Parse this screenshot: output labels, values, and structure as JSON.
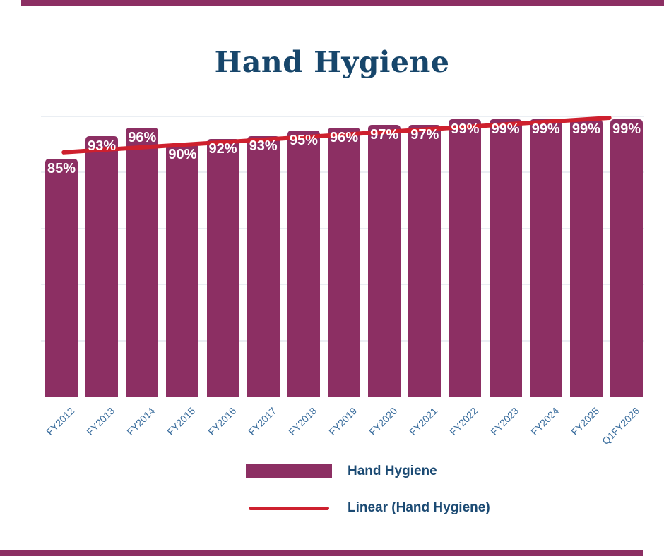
{
  "page": {
    "background": "#FFFFFF"
  },
  "colors": {
    "bar": "#8C2F63",
    "trend_line": "#CE202E",
    "title_text": "#17466B",
    "axis_label_text": "#3A6D9D",
    "legend_text": "#1B4A73",
    "bar_value_text": "#FFFFFF",
    "gridline": "#EAEEF3",
    "accent_strip": "#8C2F63"
  },
  "chart_data": {
    "type": "bar",
    "title": "Hand Hygiene",
    "categories": [
      "FY2012",
      "FY2013",
      "FY2014",
      "FY2015",
      "FY2016",
      "FY2017",
      "FY2018",
      "FY2019",
      "FY2020",
      "FY2021",
      "FY2022",
      "FY2023",
      "FY2024",
      "FY2025",
      "Q1FY2026"
    ],
    "values": [
      85,
      93,
      96,
      90,
      92,
      93,
      95,
      96,
      97,
      97,
      99,
      99,
      99,
      99,
      99
    ],
    "bar_labels": [
      "85%",
      "93%",
      "96%",
      "90%",
      "92%",
      "93%",
      "95%",
      "96%",
      "97%",
      "97%",
      "99%",
      "99%",
      "99%",
      "99%",
      "99%"
    ],
    "xlabel": "",
    "ylabel": "",
    "ylim": [
      0,
      100
    ],
    "y_axis_labels_visible": false,
    "grid": "horizontal",
    "gridline_values": [
      20,
      40,
      60,
      80,
      100
    ],
    "legend_position": "bottom-center",
    "legend": [
      {
        "label": "Hand Hygiene",
        "marker": "bar-swatch"
      },
      {
        "label": "Linear (Hand Hygiene)",
        "marker": "line-swatch"
      }
    ],
    "trendline": {
      "label": "Linear (Hand Hygiene)",
      "start_value": 87.2,
      "end_value": 99.5,
      "x_start_frac": 0.031,
      "x_end_frac": 0.944
    }
  }
}
